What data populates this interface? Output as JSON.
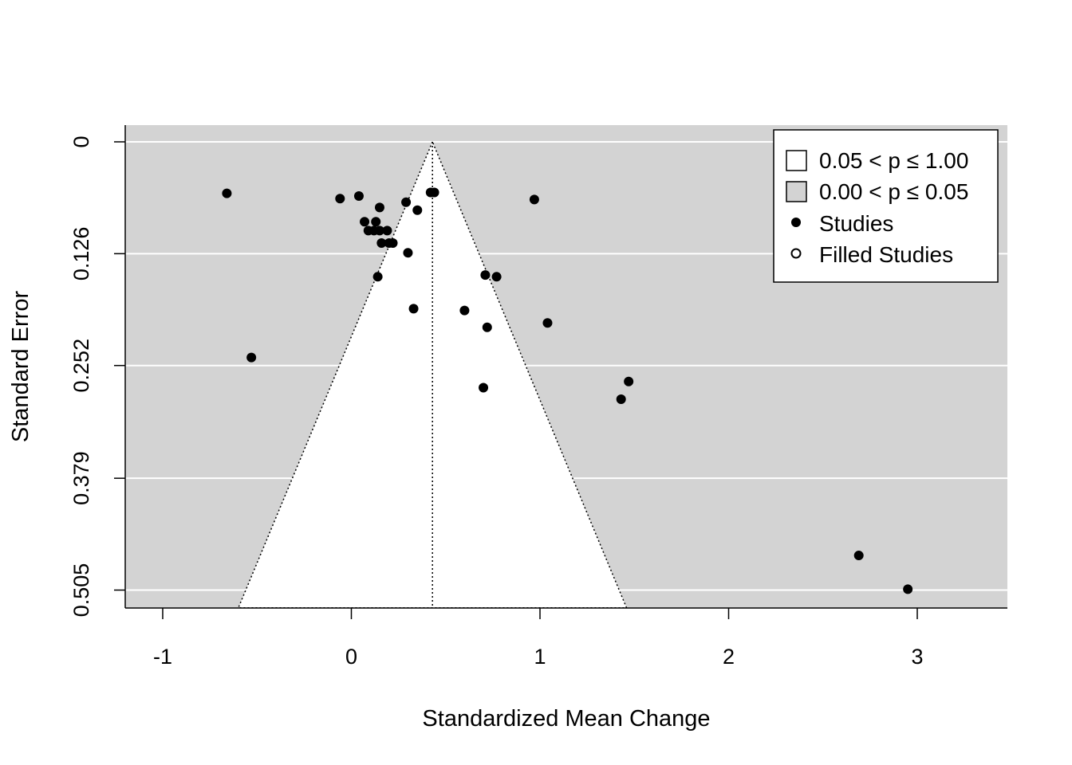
{
  "chart_data": {
    "type": "scatter",
    "subtype": "funnel",
    "xlabel": "Standardized Mean Change",
    "ylabel": "Standard Error",
    "x_ticks": [
      "-1",
      "0",
      "1",
      "2",
      "3"
    ],
    "y_ticks": [
      "0",
      "0.126",
      "0.252",
      "0.379",
      "0.505"
    ],
    "xlim": [
      -1.2,
      3.48
    ],
    "ylim_reversed": [
      0,
      0.525
    ],
    "y_tick_values": [
      0,
      0.126,
      0.252,
      0.379,
      0.505
    ],
    "x_tick_values": [
      -1,
      0,
      1,
      2,
      3
    ],
    "center": 0.43,
    "funnel_max_se": 0.525,
    "grid": "horizontal",
    "legend_position": "top-right",
    "colors": {
      "panel": "#d3d3d3",
      "funnel": "#ffffff",
      "grid": "#ffffff",
      "point": "#000000"
    },
    "legend": [
      {
        "symbol": "box-white",
        "text": "0.05 < p ≤ 1.00"
      },
      {
        "symbol": "box-grey",
        "text": "0.00 < p ≤ 0.05"
      },
      {
        "symbol": "dot-filled",
        "text": "Studies"
      },
      {
        "symbol": "dot-open",
        "text": "Filled Studies"
      }
    ],
    "points": [
      {
        "x": -0.66,
        "y": 0.058
      },
      {
        "x": -0.53,
        "y": 0.243
      },
      {
        "x": -0.06,
        "y": 0.064
      },
      {
        "x": 0.04,
        "y": 0.061
      },
      {
        "x": 0.07,
        "y": 0.09
      },
      {
        "x": 0.09,
        "y": 0.1
      },
      {
        "x": 0.12,
        "y": 0.1
      },
      {
        "x": 0.13,
        "y": 0.09
      },
      {
        "x": 0.15,
        "y": 0.074
      },
      {
        "x": 0.15,
        "y": 0.1
      },
      {
        "x": 0.16,
        "y": 0.114
      },
      {
        "x": 0.19,
        "y": 0.1
      },
      {
        "x": 0.2,
        "y": 0.114
      },
      {
        "x": 0.22,
        "y": 0.114
      },
      {
        "x": 0.14,
        "y": 0.152
      },
      {
        "x": 0.29,
        "y": 0.068
      },
      {
        "x": 0.3,
        "y": 0.125
      },
      {
        "x": 0.33,
        "y": 0.188
      },
      {
        "x": 0.35,
        "y": 0.077
      },
      {
        "x": 0.42,
        "y": 0.057
      },
      {
        "x": 0.44,
        "y": 0.057
      },
      {
        "x": 0.6,
        "y": 0.19
      },
      {
        "x": 0.7,
        "y": 0.277
      },
      {
        "x": 0.71,
        "y": 0.15
      },
      {
        "x": 0.72,
        "y": 0.209
      },
      {
        "x": 0.77,
        "y": 0.152
      },
      {
        "x": 0.97,
        "y": 0.065
      },
      {
        "x": 1.04,
        "y": 0.204
      },
      {
        "x": 1.43,
        "y": 0.29
      },
      {
        "x": 1.47,
        "y": 0.27
      },
      {
        "x": 2.69,
        "y": 0.466
      },
      {
        "x": 2.95,
        "y": 0.504
      }
    ]
  }
}
